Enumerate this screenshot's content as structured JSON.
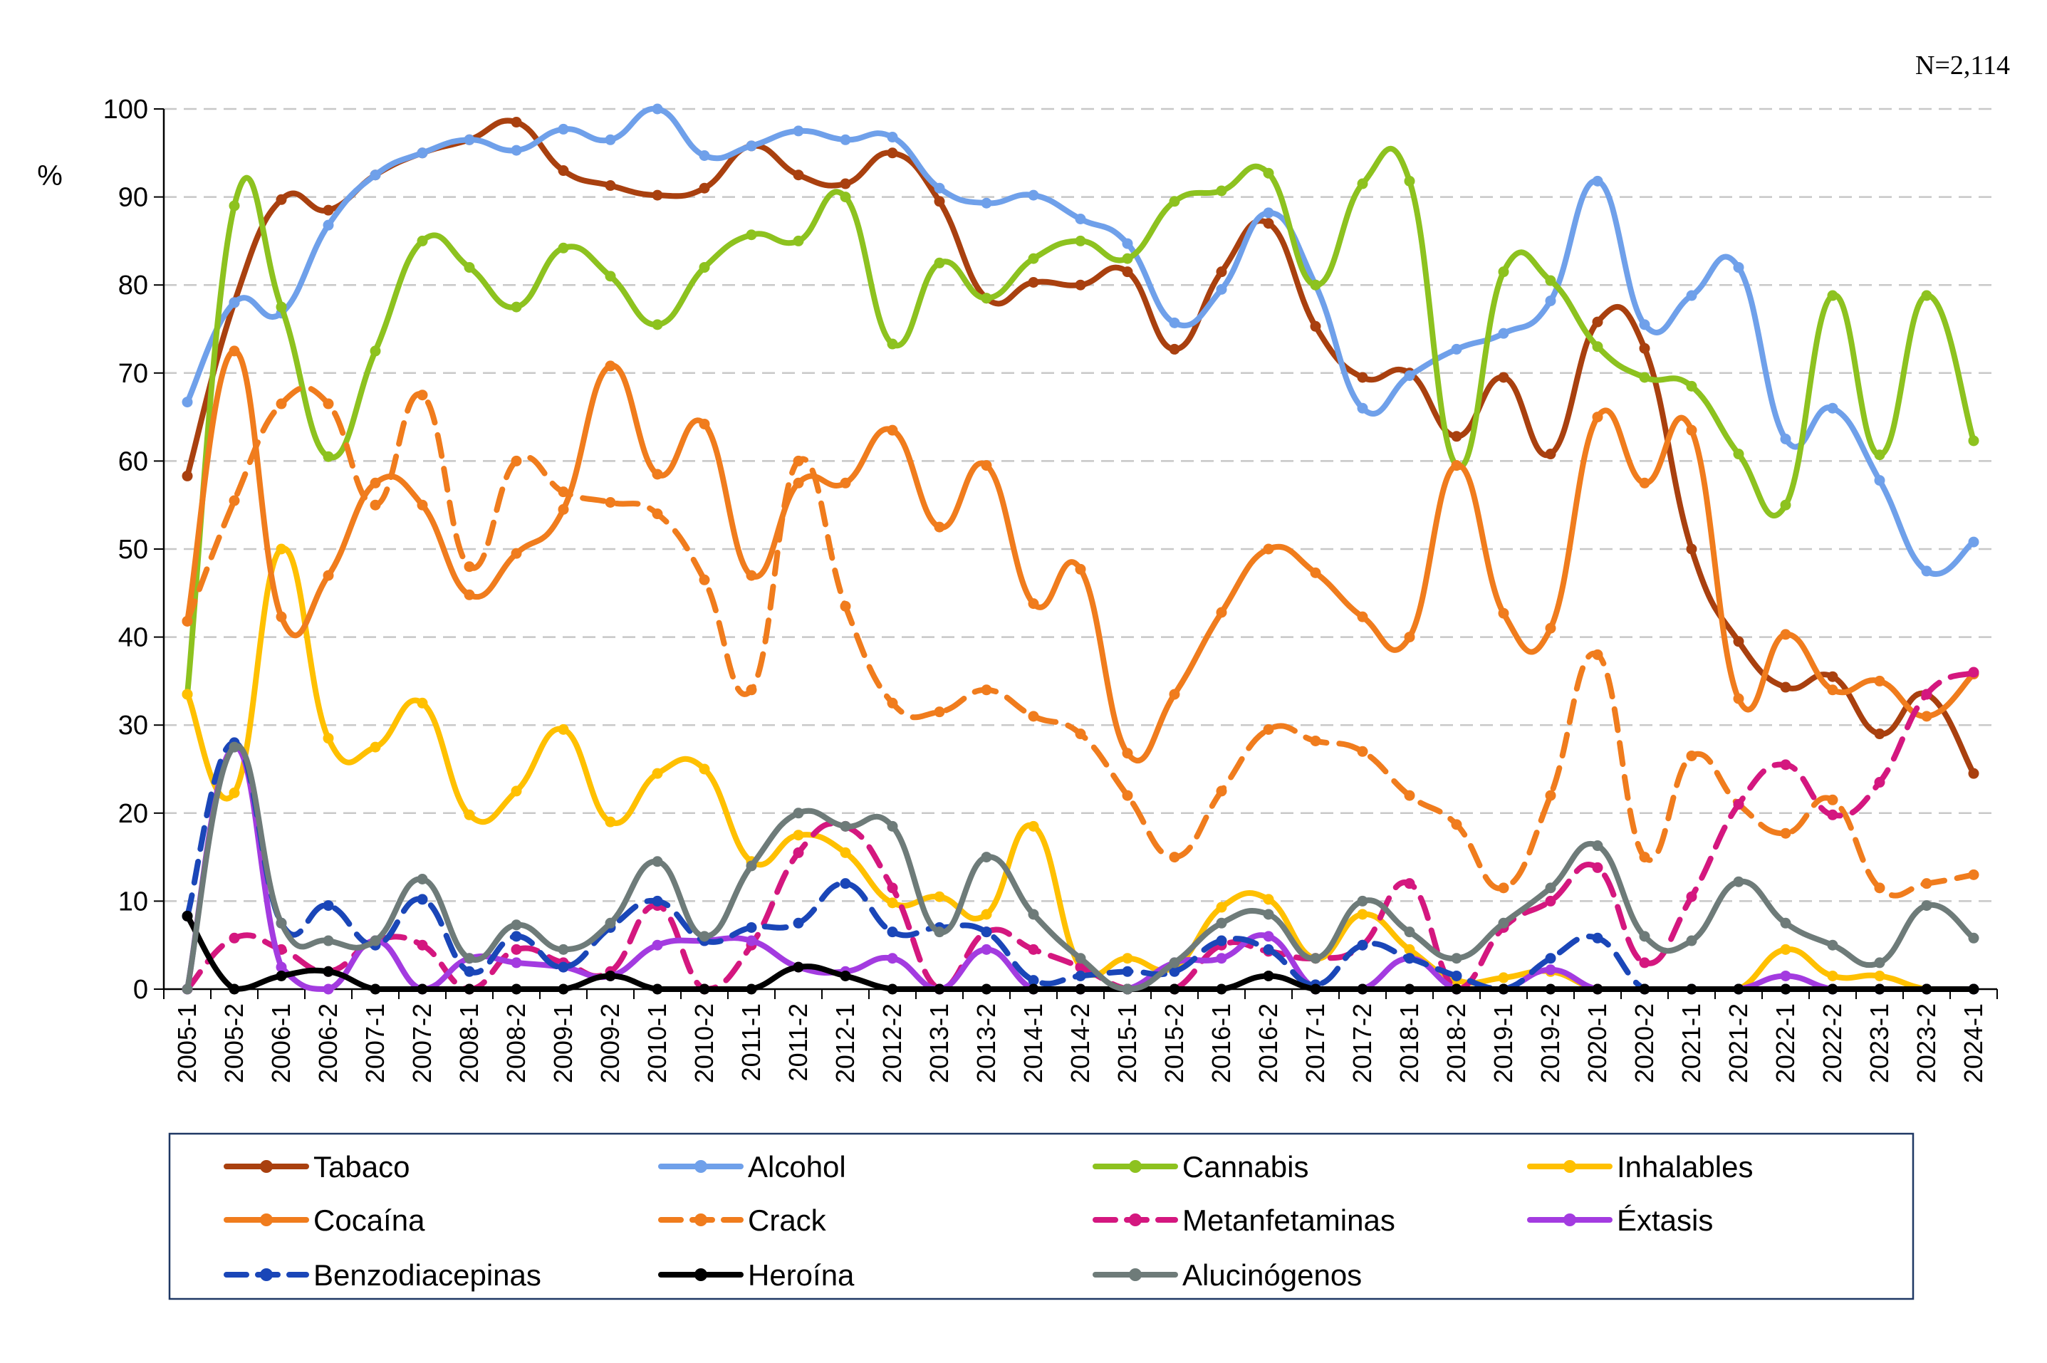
{
  "note": "N=2,114",
  "chart_data": {
    "type": "line",
    "ylabel": "%",
    "ylim": [
      0,
      100
    ],
    "yticks": [
      "0",
      "10",
      "20",
      "30",
      "40",
      "50",
      "60",
      "70",
      "80",
      "90",
      "100"
    ],
    "grid": "horizontal dashed",
    "legend_position": "bottom",
    "categories": [
      "2005-1",
      "2005-2",
      "2006-1",
      "2006-2",
      "2007-1",
      "2007-2",
      "2008-1",
      "2008-2",
      "2009-1",
      "2009-2",
      "2010-1",
      "2010-2",
      "2011-1",
      "2011-2",
      "2012-1",
      "2012-2",
      "2013-1",
      "2013-2",
      "2014-1",
      "2014-2",
      "2015-1",
      "2015-2",
      "2016-1",
      "2016-2",
      "2017-1",
      "2017-2",
      "2018-1",
      "2018-2",
      "2019-1",
      "2019-2",
      "2020-1",
      "2020-2",
      "2021-1",
      "2021-2",
      "2022-1",
      "2022-2",
      "2023-1",
      "2023-2",
      "2024-1"
    ],
    "series": [
      {
        "name": "Tabaco",
        "color": "#A9400F",
        "dash": "solid",
        "values": [
          58.3,
          78,
          89.7,
          88.5,
          92.5,
          95,
          96.5,
          98.5,
          93,
          91.3,
          90.2,
          91,
          95.8,
          92.5,
          91.5,
          95,
          89.5,
          78.5,
          80.3,
          80,
          81.5,
          72.7,
          81.5,
          87,
          75.3,
          69.5,
          70,
          62.8,
          69.5,
          60.8,
          75.8,
          72.8,
          50,
          39.5,
          34.3,
          35.5,
          29,
          33.5,
          24.5
        ]
      },
      {
        "name": "Alcohol",
        "color": "#6FA0EA",
        "dash": "solid",
        "values": [
          66.7,
          78,
          76.8,
          86.8,
          92.5,
          95,
          96.5,
          95.3,
          97.7,
          96.5,
          100,
          94.7,
          95.8,
          97.5,
          96.5,
          96.8,
          91,
          89.3,
          90.2,
          87.5,
          84.7,
          75.7,
          79.5,
          88.2,
          80,
          66,
          69.7,
          72.7,
          74.5,
          78.2,
          91.8,
          75.5,
          78.8,
          82,
          62.5,
          66,
          57.8,
          47.5,
          50.8
        ]
      },
      {
        "name": "Cannabis",
        "color": "#8DC21F",
        "dash": "solid",
        "values": [
          33.5,
          89,
          77.5,
          60.5,
          72.5,
          85,
          82,
          77.5,
          84.2,
          81,
          75.5,
          82,
          85.7,
          85,
          90,
          73.3,
          82.5,
          78.5,
          83,
          85,
          83,
          89.5,
          90.7,
          92.7,
          80,
          91.5,
          91.8,
          59.5,
          81.5,
          80.5,
          73,
          69.5,
          68.5,
          60.8,
          55,
          78.8,
          60.7,
          78.8,
          62.3
        ]
      },
      {
        "name": "Inhalables",
        "color": "#FFC000",
        "dash": "solid",
        "values": [
          33.5,
          22.3,
          50,
          28.5,
          27.5,
          32.5,
          19.8,
          22.5,
          29.5,
          19,
          24.5,
          25,
          14.5,
          17.5,
          15.5,
          9.8,
          10.5,
          8.5,
          18.5,
          2.5,
          3.5,
          2.5,
          9.3,
          10.2,
          3.5,
          8.5,
          4.5,
          1,
          1.3,
          2,
          0,
          0,
          0,
          0,
          4.5,
          1.5,
          1.5,
          0,
          0
        ]
      },
      {
        "name": "Cocaína",
        "color": "#F07C1D",
        "dash": "solid",
        "values": [
          41.8,
          72.5,
          42.3,
          47,
          57.5,
          55,
          44.8,
          49.5,
          54.5,
          70.8,
          58.5,
          64.2,
          47,
          57.5,
          57.5,
          63.5,
          52.5,
          59.5,
          43.8,
          47.7,
          26.8,
          33.5,
          42.8,
          50,
          47.3,
          42.3,
          40,
          59.5,
          42.7,
          41,
          65,
          57.5,
          63.5,
          33,
          40.3,
          34,
          35,
          31,
          35.8
        ]
      },
      {
        "name": "Crack",
        "color": "#F07C1D",
        "dash": "dashed",
        "values": [
          41.8,
          55.5,
          66.5,
          66.5,
          55,
          67.5,
          48,
          60,
          56.5,
          55.3,
          54,
          46.5,
          34,
          60,
          43.5,
          32.5,
          31.5,
          34,
          31,
          29,
          22,
          15,
          22.5,
          29.5,
          28.2,
          27,
          22,
          18.7,
          11.5,
          22,
          38,
          15,
          26.5,
          21,
          17.7,
          21.5,
          11.5,
          12,
          13
        ]
      },
      {
        "name": "Metanfetaminas",
        "color": "#D4177F",
        "dash": "dashed",
        "values": [
          0,
          5.8,
          4.5,
          2,
          5.5,
          5,
          0,
          4.5,
          3,
          2,
          9.5,
          0,
          5,
          15.5,
          18.5,
          11.5,
          0,
          6.5,
          4.5,
          2.5,
          0,
          0,
          5,
          4.3,
          3.5,
          5,
          12,
          0,
          7,
          10,
          13.8,
          3,
          10.5,
          21,
          25.5,
          19.8,
          23.5,
          33.5,
          36
        ]
      },
      {
        "name": "Éxtasis",
        "color": "#A33BE0",
        "dash": "solid",
        "values": [
          0,
          27.5,
          2.5,
          0,
          5.5,
          0,
          3.5,
          3,
          2.5,
          1.5,
          5,
          5.5,
          5.5,
          2.5,
          2,
          3.5,
          0,
          4.5,
          0,
          0,
          0,
          3,
          3.5,
          6,
          0,
          0,
          3.5,
          0,
          0,
          2.2,
          0,
          0,
          0,
          0,
          1.5,
          0,
          0,
          0,
          0
        ]
      },
      {
        "name": "Benzodiacepinas",
        "color": "#1A46B8",
        "dash": "dashed",
        "values": [
          8.3,
          28,
          7.5,
          9.5,
          5,
          10.2,
          2,
          6,
          2.5,
          7,
          10,
          5.5,
          7,
          7.5,
          12,
          6.5,
          7,
          6.5,
          1,
          1.5,
          2,
          2,
          5.5,
          4.5,
          0.5,
          5,
          3.5,
          1.5,
          0,
          3.5,
          5.8,
          0,
          0,
          0,
          0,
          0,
          0,
          0,
          0
        ]
      },
      {
        "name": "Heroína",
        "color": "#000000",
        "dash": "solid",
        "values": [
          8.3,
          0,
          1.5,
          2,
          0,
          0,
          0,
          0,
          0,
          1.5,
          0,
          0,
          0,
          2.5,
          1.5,
          0,
          0,
          0,
          0,
          0,
          0,
          0,
          0,
          1.5,
          0,
          0,
          0,
          0,
          0,
          0,
          0,
          0,
          0,
          0,
          0,
          0,
          0,
          0,
          0
        ]
      },
      {
        "name": "Alucinógenos",
        "color": "#6E7B79",
        "dash": "solid",
        "values": [
          0,
          27.5,
          7.5,
          5.5,
          5.5,
          12.5,
          3.5,
          7.3,
          4.5,
          7.5,
          14.5,
          6,
          14,
          20,
          18.5,
          18.5,
          6.5,
          15,
          8.5,
          3.5,
          0,
          3,
          7.5,
          8.5,
          3.5,
          10,
          6.5,
          3.5,
          7.5,
          11.5,
          16.3,
          6,
          5.5,
          12.2,
          7.5,
          5,
          3,
          9.5,
          5.8
        ]
      }
    ]
  }
}
